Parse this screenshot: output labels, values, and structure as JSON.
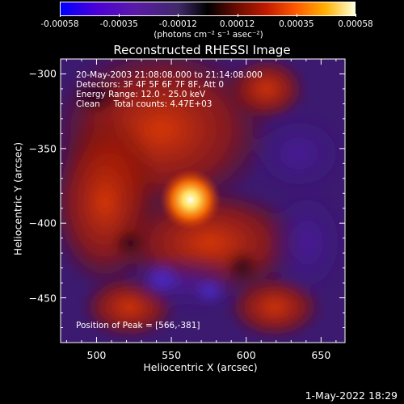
{
  "colorbar": {
    "ticks": [
      "-0.00058",
      "-0.00035",
      "-0.00012",
      "0.00012",
      "0.00035",
      "0.00058"
    ],
    "units": "(photons cm⁻² s⁻¹ asec⁻²)",
    "range": [
      -0.00058,
      0.00058
    ],
    "colors": [
      "#0000ff",
      "#5a1aa8",
      "#000000",
      "#c21a00",
      "#ff5a00",
      "#ffffd8"
    ]
  },
  "chart_data": {
    "type": "heatmap",
    "title": "Reconstructed RHESSI Image",
    "xlabel": "Heliocentric X (arcsec)",
    "ylabel": "Heliocentric Y (arcsec)",
    "xlim": [
      476,
      666
    ],
    "ylim": [
      -480,
      -290
    ],
    "x_ticks": [
      500,
      550,
      600,
      650
    ],
    "y_ticks": [
      -300,
      -350,
      -400,
      -450
    ],
    "peak": [
      566,
      -381
    ],
    "annotations": [
      "20-May-2003 21:08:08.000 to 21:14:08.000",
      "Detectors: 3F 4F 5F 6F 7F 8F, Att 0",
      "Energy Range: 12.0 - 25.0 keV",
      "Clean     Total counts: 4.47E+03"
    ],
    "peak_label": "Position of Peak = [566,-381]"
  },
  "footer": {
    "date": "1-May-2022 18:29"
  }
}
